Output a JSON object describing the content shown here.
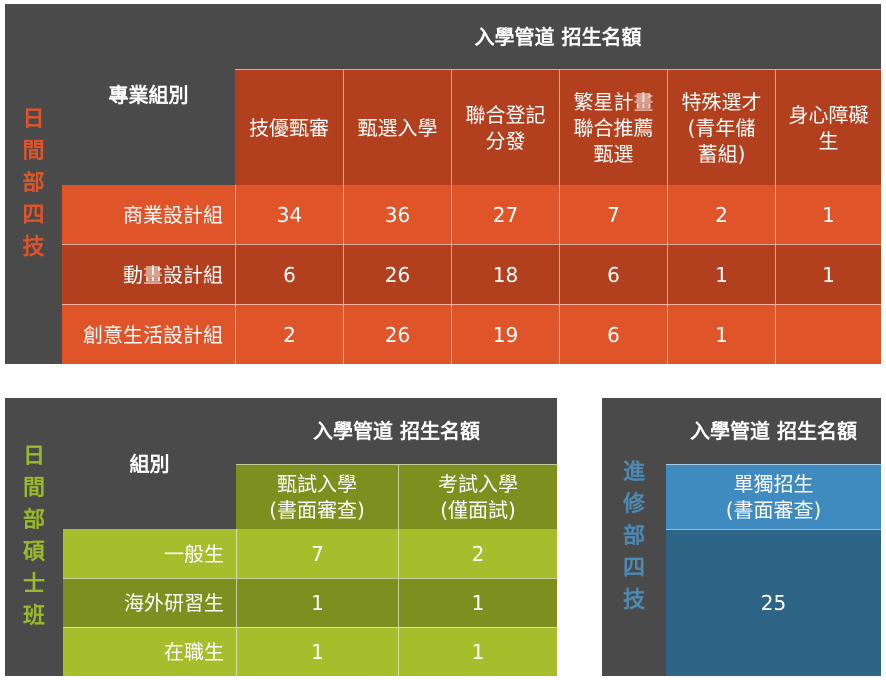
{
  "day_undergrad": {
    "side_label": [
      "日",
      "間",
      "部",
      "四",
      "技"
    ],
    "group_header": "專業組別",
    "admission_header": "入學管道 招生名額",
    "channels": [
      "技優甄審",
      "甄選入學",
      "聯合登記\n分發",
      "繁星計畫\n聯合推薦\n甄選",
      "特殊選才\n(青年儲\n蓄組)",
      "身心障礙\n生"
    ],
    "rows": [
      {
        "group": "商業設計組",
        "values": [
          "34",
          "36",
          "27",
          "7",
          "2",
          "1"
        ]
      },
      {
        "group": "動畫設計組",
        "values": [
          "6",
          "26",
          "18",
          "6",
          "1",
          "1"
        ]
      },
      {
        "group": "創意生活設計組",
        "values": [
          "2",
          "26",
          "19",
          "6",
          "1",
          ""
        ]
      }
    ]
  },
  "day_master": {
    "side_label": [
      "日",
      "間",
      "部",
      "碩",
      "士",
      "班"
    ],
    "group_header": "組別",
    "admission_header": "入學管道 招生名額",
    "channels": [
      "甄試入學\n(書面審查)",
      "考試入學\n(僅面試)"
    ],
    "rows": [
      {
        "group": "一般生",
        "values": [
          "7",
          "2"
        ]
      },
      {
        "group": "海外研習生",
        "values": [
          "1",
          "1"
        ]
      },
      {
        "group": "在職生",
        "values": [
          "1",
          "1"
        ]
      }
    ]
  },
  "extension_undergrad": {
    "side_label": [
      "進",
      "修",
      "部",
      "四",
      "技"
    ],
    "admission_header": "入學管道 招生名額",
    "channel": "單獨招生\n(書面審查)",
    "value": "25"
  },
  "colors": {
    "dark": "#4a4a4a",
    "orange_title": "#e0542a",
    "orange_header": "#b2401f",
    "orange_row_a": "#e0542a",
    "orange_row_b": "#b2401f",
    "olive_title": "#9cb82a",
    "olive_header": "#7d8f1f",
    "olive_row_a": "#a6bd2c",
    "olive_row_b": "#7d8f1f",
    "blue_title": "#4d8ab3",
    "blue_header": "#3f8bc0",
    "blue_body": "#2e6485"
  }
}
